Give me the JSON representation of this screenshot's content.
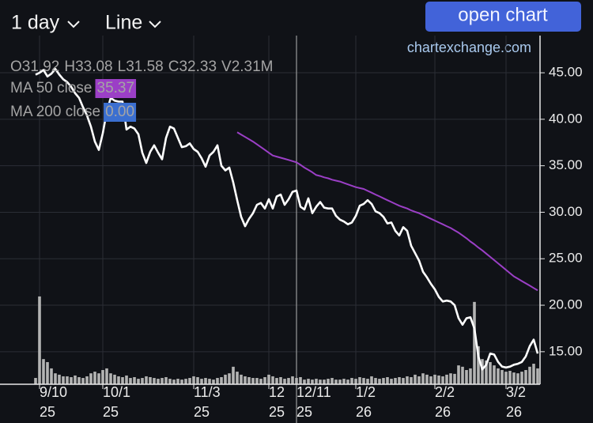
{
  "header": {
    "interval": "1 day",
    "style": "Line",
    "button": "open chart",
    "watermark": "chartexchange.com"
  },
  "chart_data": {
    "type": "line",
    "categories": [
      null,
      "9/10\n25",
      null,
      null,
      null,
      null,
      null,
      null,
      null,
      null,
      null,
      null,
      null,
      null,
      null,
      null,
      null,
      "10/1\n25",
      null,
      null,
      null,
      null,
      null,
      null,
      null,
      null,
      null,
      null,
      null,
      null,
      null,
      null,
      null,
      null,
      null,
      null,
      null,
      null,
      null,
      null,
      "11/3\n25",
      null,
      null,
      null,
      null,
      null,
      null,
      null,
      null,
      null,
      null,
      null,
      null,
      null,
      null,
      null,
      null,
      null,
      null,
      "12\n25",
      null,
      null,
      null,
      null,
      null,
      null,
      "12/11\n25",
      null,
      null,
      null,
      null,
      null,
      null,
      null,
      null,
      null,
      null,
      null,
      null,
      null,
      null,
      "1/2\n26",
      null,
      null,
      null,
      null,
      null,
      null,
      null,
      null,
      null,
      null,
      null,
      null,
      null,
      null,
      null,
      null,
      null,
      null,
      null,
      "2/2\n26",
      null,
      null,
      null,
      null,
      null,
      null,
      null,
      null,
      null,
      null,
      null,
      null,
      null,
      null,
      null,
      null,
      null,
      "3/2\n26",
      null,
      null,
      null,
      null,
      null,
      null,
      null,
      null
    ],
    "series": [
      {
        "name": "close",
        "color": "#ffffff",
        "values": [
          44.8,
          45.0,
          45.3,
          44.6,
          44.9,
          45.4,
          44.8,
          44.3,
          44.0,
          43.5,
          42.8,
          42.3,
          41.3,
          40.4,
          39.2,
          37.6,
          36.7,
          38.5,
          40.8,
          42.3,
          42.0,
          41.9,
          41.9,
          38.9,
          39.2,
          39.0,
          38.4,
          36.4,
          35.3,
          36.5,
          37.2,
          36.4,
          35.7,
          38.0,
          39.2,
          39.0,
          38.0,
          37.0,
          37.1,
          37.4,
          36.8,
          36.5,
          35.8,
          34.9,
          36.1,
          36.5,
          37.2,
          35.0,
          34.5,
          34.8,
          33.2,
          31.3,
          29.5,
          28.5,
          29.3,
          29.9,
          30.8,
          31.0,
          30.4,
          31.4,
          30.4,
          31.7,
          31.9,
          30.8,
          31.4,
          32.2,
          32.33,
          30.6,
          30.3,
          31.5,
          29.9,
          30.6,
          31.1,
          30.5,
          30.4,
          30.4,
          29.6,
          29.2,
          29.0,
          28.7,
          28.9,
          29.6,
          30.7,
          30.9,
          31.3,
          30.9,
          30.1,
          29.9,
          29.5,
          28.8,
          28.9,
          28.0,
          27.5,
          28.4,
          28.0,
          26.4,
          25.6,
          24.8,
          23.6,
          23.0,
          22.3,
          21.7,
          20.9,
          20.4,
          20.5,
          20.4,
          20.0,
          18.6,
          17.9,
          18.6,
          18.7,
          17.5,
          14.5,
          13.1,
          13.6,
          14.8,
          14.7,
          13.9,
          13.4,
          13.3,
          13.4,
          13.6,
          13.7,
          13.9,
          14.5,
          15.6,
          16.3,
          14.8
        ]
      },
      {
        "name": "MA 50 close",
        "color": "#9b3fc6",
        "values": [
          null,
          null,
          null,
          null,
          null,
          null,
          null,
          null,
          null,
          null,
          null,
          null,
          null,
          null,
          null,
          null,
          null,
          null,
          null,
          null,
          null,
          null,
          null,
          null,
          null,
          null,
          null,
          null,
          null,
          null,
          null,
          null,
          null,
          null,
          null,
          null,
          null,
          null,
          null,
          null,
          null,
          null,
          null,
          null,
          null,
          null,
          null,
          null,
          null,
          null,
          null,
          38.6,
          38.35,
          38.1,
          37.85,
          37.6,
          37.3,
          37.0,
          36.7,
          36.4,
          36.1,
          35.98,
          35.86,
          35.74,
          35.62,
          35.5,
          35.37,
          35.1,
          34.8,
          34.55,
          34.3,
          34.0,
          33.9,
          33.75,
          33.65,
          33.5,
          33.4,
          33.3,
          33.15,
          33.0,
          32.85,
          32.7,
          32.6,
          32.5,
          32.3,
          32.1,
          31.9,
          31.7,
          31.5,
          31.3,
          31.1,
          30.9,
          30.7,
          30.55,
          30.4,
          30.2,
          30.05,
          29.9,
          29.7,
          29.5,
          29.3,
          29.1,
          28.9,
          28.7,
          28.5,
          28.3,
          28.05,
          27.8,
          27.5,
          27.2,
          26.85,
          26.55,
          26.2,
          25.9,
          25.55,
          25.2,
          24.85,
          24.5,
          24.15,
          23.8,
          23.45,
          23.1,
          22.85,
          22.6,
          22.35,
          22.1,
          21.85,
          21.6
        ]
      }
    ],
    "volume": {
      "color": "#b4b4b4",
      "values": [
        2.3,
        32.1,
        9.2,
        8.1,
        5.8,
        4.0,
        3.5,
        2.9,
        2.9,
        2.6,
        3.2,
        2.6,
        2.3,
        2.9,
        4.0,
        4.6,
        4.0,
        5.2,
        5.8,
        4.0,
        3.5,
        2.9,
        2.6,
        3.2,
        2.3,
        2.6,
        2.0,
        2.3,
        2.9,
        2.6,
        2.3,
        2.0,
        2.3,
        2.6,
        2.0,
        1.7,
        2.0,
        1.7,
        2.0,
        2.3,
        2.9,
        2.6,
        2.0,
        2.3,
        2.0,
        1.7,
        2.3,
        2.6,
        3.5,
        4.0,
        6.4,
        4.6,
        3.5,
        2.9,
        2.6,
        2.3,
        2.3,
        2.0,
        2.6,
        3.5,
        2.9,
        2.3,
        2.6,
        2.0,
        2.3,
        2.9,
        2.31,
        2.6,
        1.7,
        2.0,
        1.7,
        2.0,
        1.7,
        1.7,
        2.0,
        2.3,
        1.7,
        1.7,
        2.0,
        1.7,
        2.3,
        2.0,
        2.6,
        2.3,
        2.0,
        2.9,
        2.3,
        2.0,
        2.3,
        2.6,
        2.0,
        2.3,
        2.6,
        2.3,
        2.9,
        2.6,
        3.5,
        2.9,
        4.0,
        3.5,
        2.9,
        3.5,
        3.2,
        2.9,
        3.5,
        4.0,
        3.8,
        6.9,
        6.4,
        5.2,
        5.8,
        30.1,
        13.9,
        9.2,
        8.7,
        8.1,
        6.9,
        5.8,
        5.2,
        4.6,
        4.9,
        4.3,
        4.0,
        4.6,
        5.2,
        6.4,
        7.5,
        5.8
      ]
    },
    "ylim": [
      11.5,
      49
    ],
    "yticks": [
      {
        "value": 15,
        "label": "15.00"
      },
      {
        "value": 20,
        "label": "20.00"
      },
      {
        "value": 25,
        "label": "25.00"
      },
      {
        "value": 30,
        "label": "30.00"
      },
      {
        "value": 35,
        "label": "35.00"
      },
      {
        "value": 40,
        "label": "40.00"
      },
      {
        "value": 45,
        "label": "45.00"
      }
    ],
    "grid": true,
    "crosshair": {
      "index": 66,
      "ohlc": [
        {
          "label": "O",
          "value": 31.92
        },
        {
          "label": "H",
          "value": 33.08
        },
        {
          "label": "L",
          "value": 31.58
        },
        {
          "label": "C",
          "value": 32.33
        },
        {
          "label": "V",
          "value": 2310000,
          "value_label": "2.31M"
        }
      ],
      "ma": [
        {
          "name": "MA 50 close",
          "value": 35.37,
          "color": "#9b3fc6"
        },
        {
          "name": "MA 200 close",
          "value": 0,
          "value_label": "0.00",
          "color": "#3b6fd0"
        }
      ]
    }
  }
}
